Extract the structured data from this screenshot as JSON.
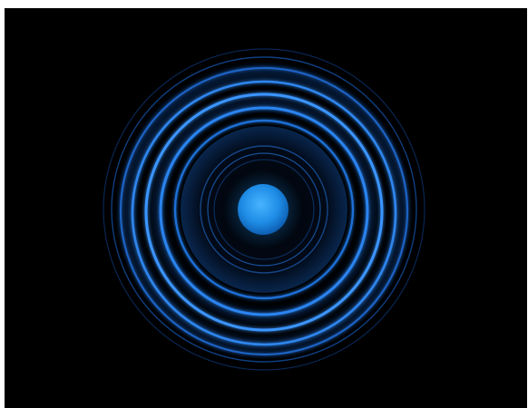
{
  "image": {
    "subject": "concentric-glowing-rings",
    "colors": {
      "background": "#000000",
      "border": "#ffffff",
      "ring_glow": "#1e6fd9",
      "ring_bright": "#3f9bff",
      "core": "#1f8de6"
    }
  }
}
